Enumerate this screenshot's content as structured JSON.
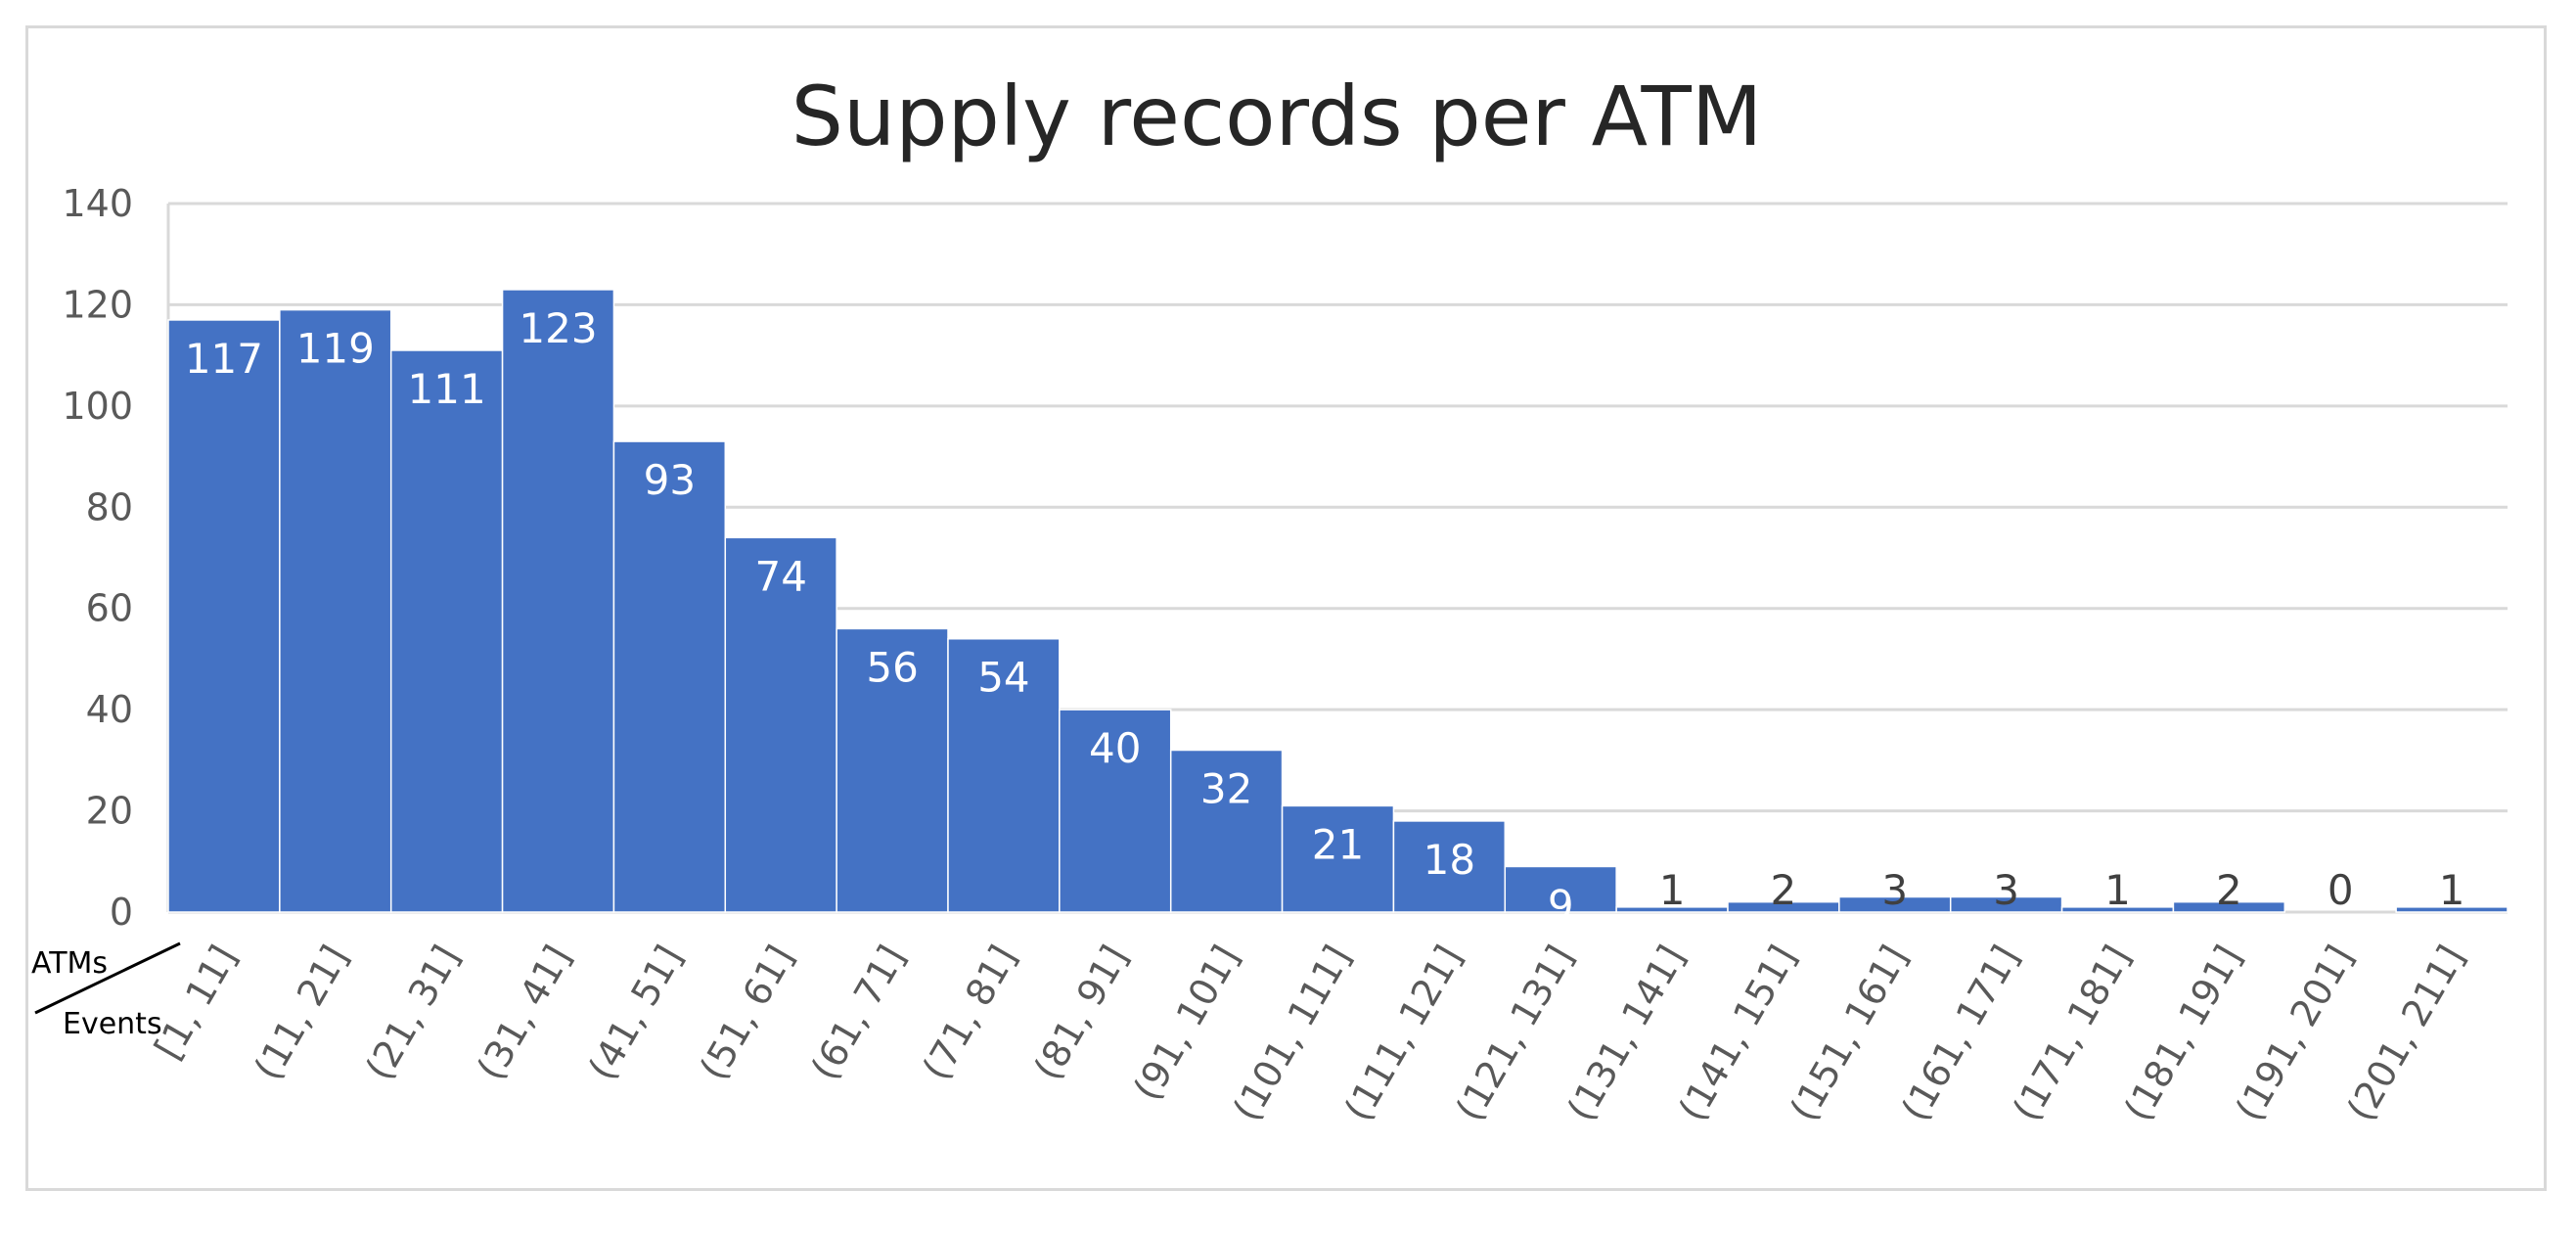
{
  "chart_data": {
    "type": "bar",
    "title": "Supply records per ATM",
    "corner_labels": {
      "top": "ATMs",
      "bottom": "Events"
    },
    "categories": [
      "[1, 11]",
      "(11, 21]",
      "(21, 31]",
      "(31, 41]",
      "(41, 51]",
      "(51, 61]",
      "(61, 71]",
      "(71, 81]",
      "(81, 91]",
      "(91, 101]",
      "(101, 111]",
      "(111, 121]",
      "(121, 131]",
      "(131, 141]",
      "(141, 151]",
      "(151, 161]",
      "(161, 171]",
      "(171, 181]",
      "(181, 191]",
      "(191, 201]",
      "(201, 211]"
    ],
    "values": [
      117,
      119,
      111,
      123,
      93,
      74,
      56,
      54,
      40,
      32,
      21,
      18,
      9,
      1,
      2,
      3,
      3,
      1,
      2,
      0,
      1
    ],
    "ylim": [
      0,
      140
    ],
    "yticks": [
      0,
      20,
      40,
      60,
      80,
      100,
      120,
      140
    ],
    "grid": true,
    "legend": "none",
    "colors": {
      "bar": "#4472c4",
      "grid": "#d9d9d9",
      "bar_edge": "#ffffff"
    }
  }
}
